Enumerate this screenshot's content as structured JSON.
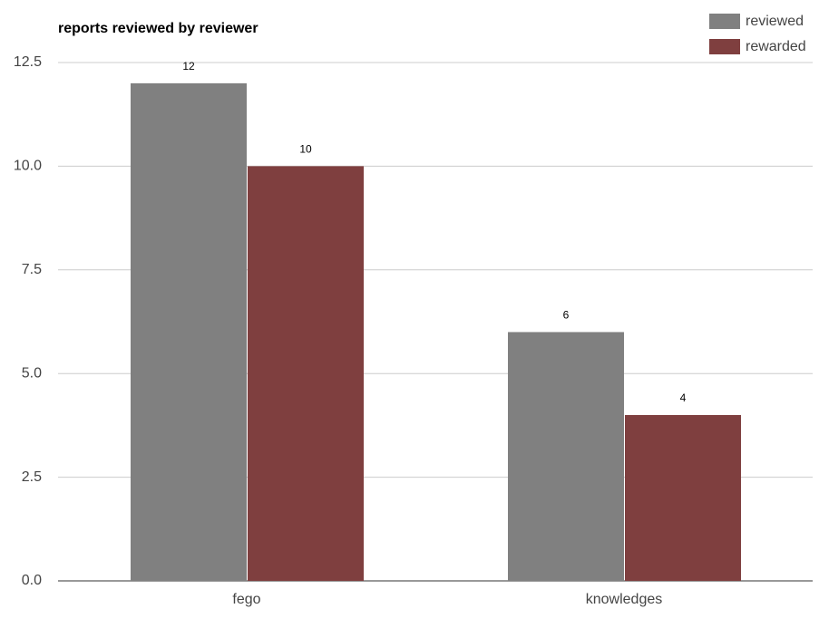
{
  "chart_data": {
    "type": "bar",
    "title": "reports reviewed by reviewer",
    "categories": [
      "fego",
      "knowledges"
    ],
    "series": [
      {
        "name": "reviewed",
        "color": "#808080",
        "values": [
          12,
          6
        ]
      },
      {
        "name": "rewarded",
        "color": "#7f3f3f",
        "values": [
          10,
          4
        ]
      }
    ],
    "ylim": [
      0,
      12.5
    ],
    "yticks": [
      {
        "value": 0,
        "label": "0.0"
      },
      2.5,
      {
        "value": 5,
        "label": "5.0"
      },
      7.5,
      {
        "value": 10,
        "label": "10.0"
      },
      12.5
    ],
    "grid": true,
    "legend": "top-right"
  }
}
